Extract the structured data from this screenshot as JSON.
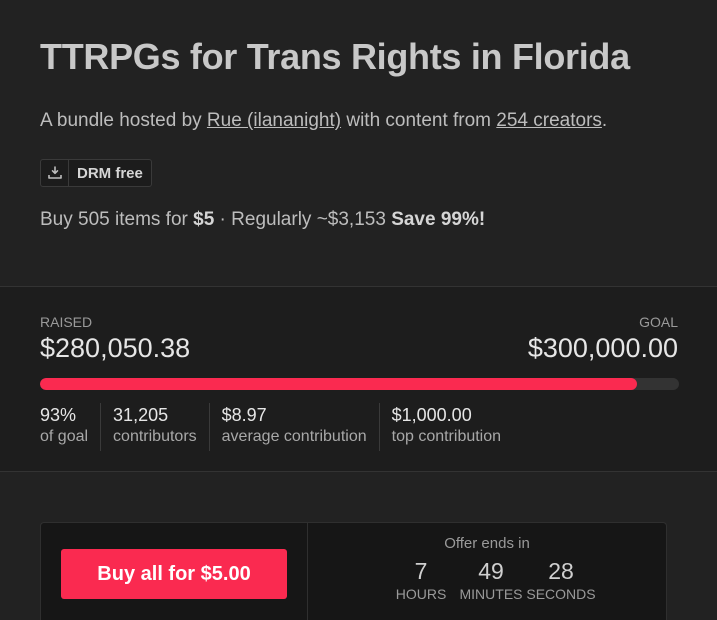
{
  "bundle": {
    "title": "TTRPGs for Trans Rights in Florida",
    "subtitle_prefix": "A bundle hosted by ",
    "host_link": "Rue (ilananight)",
    "subtitle_middle": " with content from ",
    "creators_link": "254 creators",
    "subtitle_suffix": ".",
    "drm_badge": "DRM free",
    "price_prefix": "Buy 505 items for ",
    "price": "$5",
    "price_middle": " · Regularly ~$3,153 ",
    "savings": "Save 99%!"
  },
  "fundraising": {
    "raised_label": "RAISED",
    "raised_amount": "$280,050.38",
    "goal_label": "GOAL",
    "goal_amount": "$300,000.00",
    "progress_fraction": 0.934,
    "stats": [
      {
        "value": "93%",
        "label": "of goal"
      },
      {
        "value": "31,205",
        "label": "contributors"
      },
      {
        "value": "$8.97",
        "label": "average contribution"
      },
      {
        "value": "$1,000.00",
        "label": "top contribution"
      }
    ]
  },
  "purchase": {
    "buy_label": "Buy all for $5.00",
    "offer_label": "Offer ends in",
    "countdown": [
      {
        "value": "7",
        "unit": "HOURS"
      },
      {
        "value": "49",
        "unit": "MINUTES"
      },
      {
        "value": "28",
        "unit": "SECONDS"
      }
    ]
  },
  "colors": {
    "accent": "#fa2a50",
    "background": "#222222"
  },
  "icons": {
    "drm": "download-tray-icon"
  }
}
